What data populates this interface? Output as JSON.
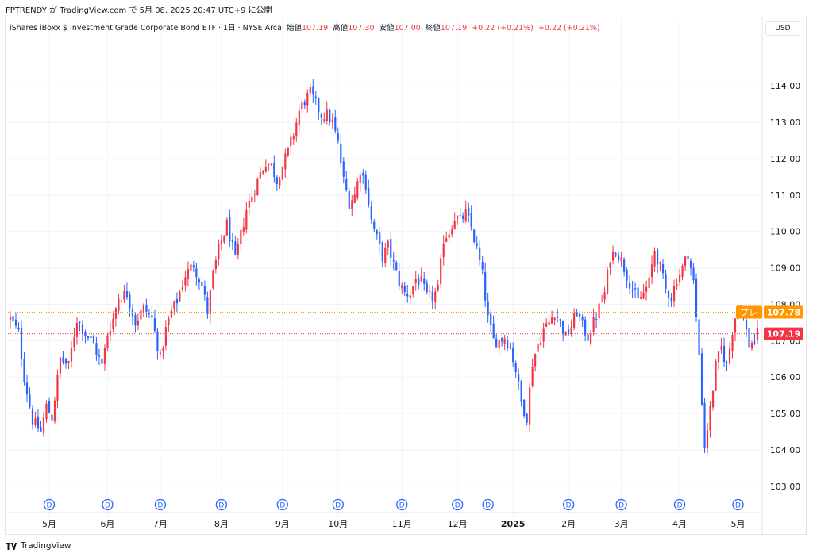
{
  "header": {
    "published": "FPTRENDY が TradingView.com で 5月 08, 2025 20:47 UTC+9 に公開"
  },
  "legend": {
    "symbol": "iShares iBoxx $ Investment Grade Corporate Bond ETF · 1日 · NYSE Arca",
    "open_label": "始値",
    "open": "107.19",
    "high_label": "高値",
    "high": "107.30",
    "low_label": "安値",
    "low": "107.00",
    "close_label": "終値",
    "close": "107.19",
    "change": "+0.22 (+0.21%)",
    "change2": "+0.22 (+0.21%)"
  },
  "currency": "USD",
  "footer": {
    "brand": "TradingView"
  },
  "colors": {
    "up": "#f23645",
    "down": "#2962ff",
    "premarket": "#ff9800",
    "grid": "#f0f3fa"
  },
  "chart_data": {
    "type": "candlestick",
    "title": "iShares iBoxx $ Investment Grade Corporate Bond ETF",
    "interval": "1日",
    "exchange": "NYSE Arca",
    "ylim": [
      102.8,
      115.4
    ],
    "y_ticks": [
      "103.00",
      "104.00",
      "105.00",
      "106.00",
      "107.00",
      "108.00",
      "109.00",
      "110.00",
      "111.00",
      "112.00",
      "113.00",
      "114.00"
    ],
    "x_labels": [
      {
        "label": "5月",
        "index": 14
      },
      {
        "label": "6月",
        "index": 35
      },
      {
        "label": "7月",
        "index": 54
      },
      {
        "label": "8月",
        "index": 76
      },
      {
        "label": "9月",
        "index": 98
      },
      {
        "label": "10月",
        "index": 118
      },
      {
        "label": "11月",
        "index": 141
      },
      {
        "label": "12月",
        "index": 161
      },
      {
        "label": "2025",
        "index": 181
      },
      {
        "label": "2月",
        "index": 201
      },
      {
        "label": "3月",
        "index": 220
      },
      {
        "label": "4月",
        "index": 241
      },
      {
        "label": "5月",
        "index": 262
      }
    ],
    "dividend_marker": "D",
    "dividend_indices": [
      14,
      35,
      54,
      76,
      98,
      118,
      141,
      161,
      172,
      201,
      220,
      241,
      262
    ],
    "close_anchors": [
      [
        0,
        107.6
      ],
      [
        3,
        107.2
      ],
      [
        5,
        106.0
      ],
      [
        8,
        104.8
      ],
      [
        11,
        104.5
      ],
      [
        13,
        105.2
      ],
      [
        15,
        104.9
      ],
      [
        18,
        106.5
      ],
      [
        21,
        106.3
      ],
      [
        24,
        107.6
      ],
      [
        27,
        107.2
      ],
      [
        30,
        106.9
      ],
      [
        33,
        106.3
      ],
      [
        35,
        107.2
      ],
      [
        37,
        107.6
      ],
      [
        39,
        108.2
      ],
      [
        42,
        108.3
      ],
      [
        45,
        107.5
      ],
      [
        48,
        107.9
      ],
      [
        51,
        107.6
      ],
      [
        54,
        106.5
      ],
      [
        56,
        107.3
      ],
      [
        58,
        107.8
      ],
      [
        60,
        108.1
      ],
      [
        63,
        108.8
      ],
      [
        66,
        109.1
      ],
      [
        69,
        108.5
      ],
      [
        71,
        107.8
      ],
      [
        73,
        108.8
      ],
      [
        75,
        109.5
      ],
      [
        78,
        110.2
      ],
      [
        81,
        109.2
      ],
      [
        83,
        109.9
      ],
      [
        85,
        110.6
      ],
      [
        88,
        111.2
      ],
      [
        90,
        111.6
      ],
      [
        92,
        111.9
      ],
      [
        94,
        111.8
      ],
      [
        96,
        111.4
      ],
      [
        98,
        111.8
      ],
      [
        100,
        112.2
      ],
      [
        102,
        112.7
      ],
      [
        104,
        113.3
      ],
      [
        106,
        113.6
      ],
      [
        108,
        113.8
      ],
      [
        110,
        113.5
      ],
      [
        112,
        113.2
      ],
      [
        114,
        113.2
      ],
      [
        116,
        113.0
      ],
      [
        118,
        112.4
      ],
      [
        120,
        111.4
      ],
      [
        122,
        110.8
      ],
      [
        124,
        111.0
      ],
      [
        126,
        111.7
      ],
      [
        128,
        111.3
      ],
      [
        130,
        110.3
      ],
      [
        132,
        109.8
      ],
      [
        134,
        109.3
      ],
      [
        136,
        109.6
      ],
      [
        138,
        109.1
      ],
      [
        140,
        108.6
      ],
      [
        142,
        108.3
      ],
      [
        144,
        108.3
      ],
      [
        146,
        108.7
      ],
      [
        148,
        108.6
      ],
      [
        150,
        108.2
      ],
      [
        152,
        108.2
      ],
      [
        154,
        108.4
      ],
      [
        156,
        109.8
      ],
      [
        158,
        110.0
      ],
      [
        160,
        110.4
      ],
      [
        162,
        110.3
      ],
      [
        164,
        110.5
      ],
      [
        166,
        110.1
      ],
      [
        168,
        109.5
      ],
      [
        170,
        108.8
      ],
      [
        172,
        107.6
      ],
      [
        174,
        107.0
      ],
      [
        176,
        107.0
      ],
      [
        178,
        107.1
      ],
      [
        180,
        106.8
      ],
      [
        182,
        106.2
      ],
      [
        184,
        105.3
      ],
      [
        186,
        104.9
      ],
      [
        188,
        106.4
      ],
      [
        190,
        106.9
      ],
      [
        192,
        107.3
      ],
      [
        194,
        107.5
      ],
      [
        196,
        107.8
      ],
      [
        198,
        107.5
      ],
      [
        200,
        107.1
      ],
      [
        202,
        107.4
      ],
      [
        204,
        107.8
      ],
      [
        206,
        107.4
      ],
      [
        208,
        107.1
      ],
      [
        210,
        107.5
      ],
      [
        212,
        107.9
      ],
      [
        214,
        108.3
      ],
      [
        216,
        109.3
      ],
      [
        218,
        109.5
      ],
      [
        220,
        109.2
      ],
      [
        222,
        108.8
      ],
      [
        224,
        108.4
      ],
      [
        226,
        108.1
      ],
      [
        228,
        108.3
      ],
      [
        230,
        108.6
      ],
      [
        232,
        109.5
      ],
      [
        234,
        109.0
      ],
      [
        236,
        108.4
      ],
      [
        238,
        108.2
      ],
      [
        240,
        108.7
      ],
      [
        242,
        109.0
      ],
      [
        244,
        109.4
      ],
      [
        246,
        108.6
      ],
      [
        248,
        106.6
      ],
      [
        250,
        104.1
      ],
      [
        252,
        105.1
      ],
      [
        254,
        106.3
      ],
      [
        256,
        106.8
      ],
      [
        258,
        106.3
      ],
      [
        260,
        107.3
      ],
      [
        262,
        108.0
      ],
      [
        264,
        107.6
      ],
      [
        266,
        106.9
      ],
      [
        268,
        107.0
      ],
      [
        269,
        107.19
      ]
    ],
    "last_close": "107.19",
    "premarket_price": "107.78",
    "premarket_label": "プレ"
  }
}
